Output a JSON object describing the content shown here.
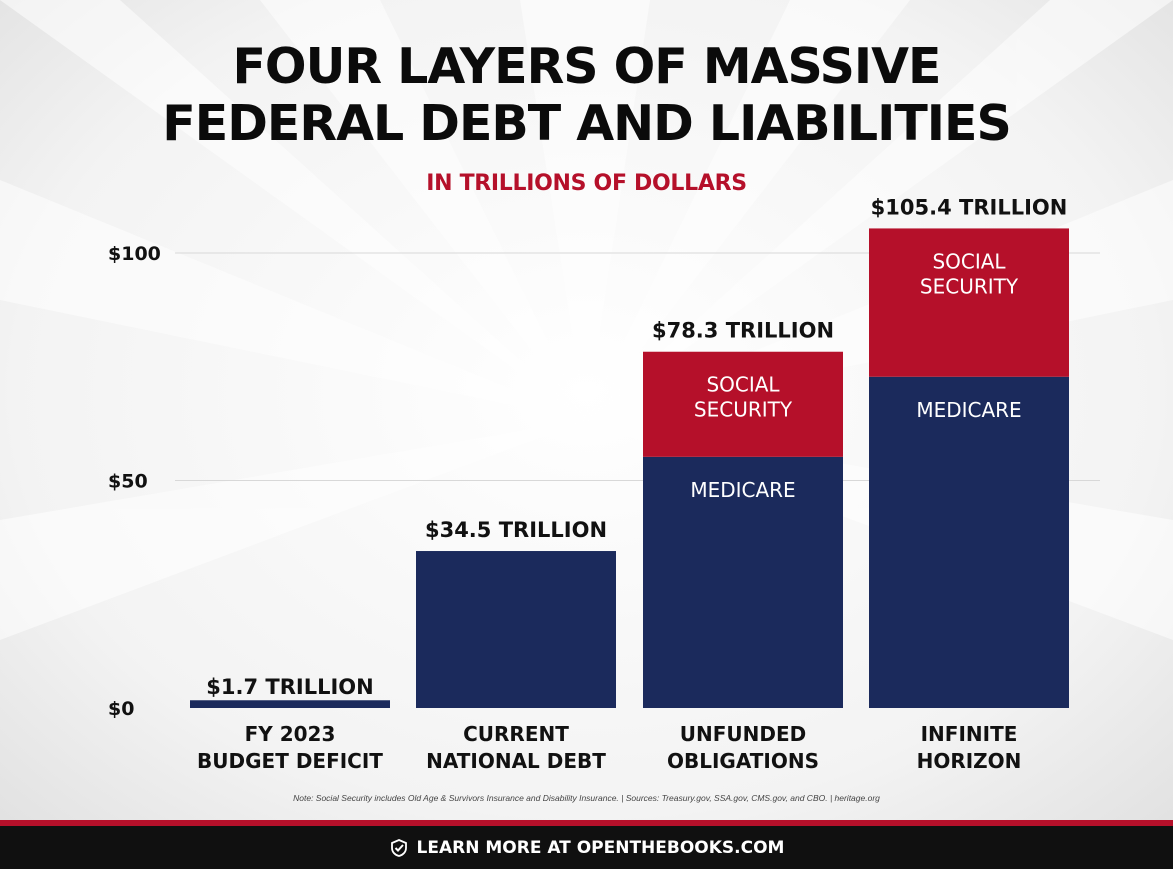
{
  "title_line_1": "FOUR LAYERS OF MASSIVE",
  "title_line_2": "FEDERAL DEBT AND LIABILITIES",
  "subtitle": "IN TRILLIONS OF DOLLARS",
  "chart_data": {
    "type": "bar",
    "stacked": true,
    "title": "FOUR LAYERS OF MASSIVE FEDERAL DEBT AND LIABILITIES",
    "subtitle": "IN TRILLIONS OF DOLLARS",
    "xlabel": "",
    "ylabel": "",
    "ylim": [
      0,
      100
    ],
    "yticks": [
      {
        "value": 0,
        "label": "$0"
      },
      {
        "value": 50,
        "label": "$50"
      },
      {
        "value": 100,
        "label": "$100"
      }
    ],
    "grid": true,
    "legend": "none",
    "categories": [
      {
        "line1": "FY 2023",
        "line2": "BUDGET DEFICIT"
      },
      {
        "line1": "CURRENT",
        "line2": "NATIONAL DEBT"
      },
      {
        "line1": "UNFUNDED",
        "line2": "OBLIGATIONS"
      },
      {
        "line1": "INFINITE",
        "line2": "HORIZON"
      }
    ],
    "totals": [
      1.7,
      34.5,
      78.3,
      105.4
    ],
    "total_labels": [
      "$1.7 TRILLION",
      "$34.5 TRILLION",
      "$78.3 TRILLION",
      "$105.4 TRILLION"
    ],
    "bars": [
      {
        "segments": [
          {
            "value": 1.7,
            "label": "",
            "color": "#1b2a5c"
          }
        ]
      },
      {
        "segments": [
          {
            "value": 34.5,
            "label": "",
            "color": "#1b2a5c"
          }
        ]
      },
      {
        "segments": [
          {
            "value": 55.2,
            "label": "MEDICARE",
            "color": "#1b2a5c"
          },
          {
            "value": 23.1,
            "label": "SOCIAL SECURITY",
            "color": "#b5102a"
          }
        ]
      },
      {
        "segments": [
          {
            "value": 72.8,
            "label": "MEDICARE",
            "color": "#1b2a5c"
          },
          {
            "value": 32.6,
            "label": "SOCIAL SECURITY",
            "color": "#b5102a"
          }
        ]
      }
    ]
  },
  "note": "Note: Social Security includes Old Age & Survivors Insurance and Disability Insurance. | Sources: Treasury.gov, SSA.gov, CMS.gov, and CBO. | heritage.org",
  "footer": {
    "icon": "checkmark-shield-icon",
    "text": "LEARN MORE AT OPENTHEBOOKS.COM"
  },
  "colors": {
    "navy": "#1b2a5c",
    "red": "#b5102a",
    "footer_bg": "#101010"
  }
}
